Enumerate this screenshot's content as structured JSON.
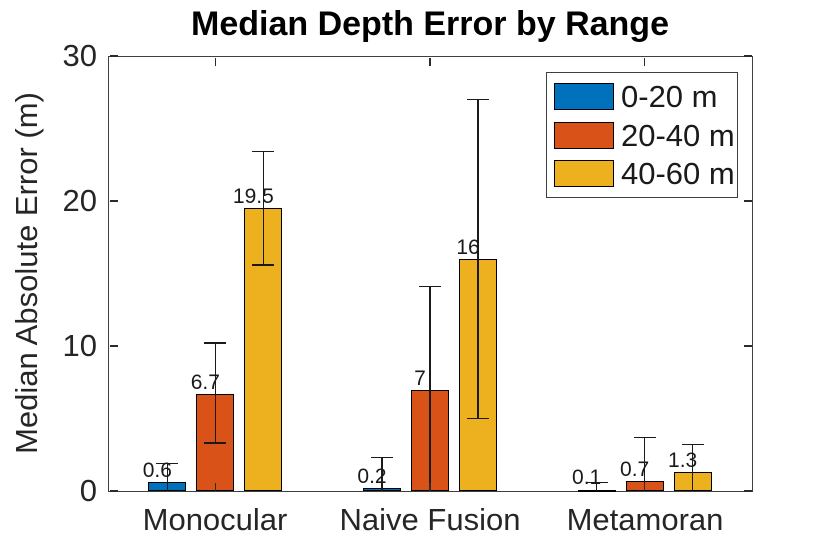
{
  "chart_data": {
    "type": "bar",
    "title": "Median Depth Error by Range",
    "ylabel": "Median Absolute Error (m)",
    "xlabel": "",
    "categories": [
      "Monocular",
      "Naive Fusion",
      "Metamoran"
    ],
    "series": [
      {
        "name": "0-20 m",
        "color": "#0072BD",
        "values": [
          0.6,
          0.2,
          0.1
        ],
        "value_labels": [
          "0.6",
          "0.2",
          "0.1"
        ],
        "err_hi": [
          1.9,
          2.3,
          0.6
        ],
        "err_lo": [
          -0.7,
          -1.9,
          -0.4
        ]
      },
      {
        "name": "20-40 m",
        "color": "#D95319",
        "values": [
          6.7,
          7,
          0.7
        ],
        "value_labels": [
          "6.7",
          "7",
          "0.7"
        ],
        "err_hi": [
          10.2,
          14.1,
          3.7
        ],
        "err_lo": [
          3.3,
          -0.1,
          -2.3
        ]
      },
      {
        "name": "40-60 m",
        "color": "#EDB120",
        "values": [
          19.5,
          16,
          1.3
        ],
        "value_labels": [
          "19.5",
          "16",
          "1.3"
        ],
        "err_hi": [
          23.4,
          27.0,
          3.2
        ],
        "err_lo": [
          15.6,
          5.0,
          -0.6
        ]
      }
    ],
    "ylim": [
      0,
      30
    ],
    "yticks": [
      0,
      10,
      20,
      30
    ],
    "grid": false,
    "legend_position": "top-right",
    "error_bars": true
  },
  "colors": {
    "series_blue": "#0072BD",
    "series_orange": "#D95319",
    "series_yellow": "#EDB120",
    "axis": "#3f3f3f",
    "error_bar": "#1a1a1a",
    "text": "#262626"
  }
}
